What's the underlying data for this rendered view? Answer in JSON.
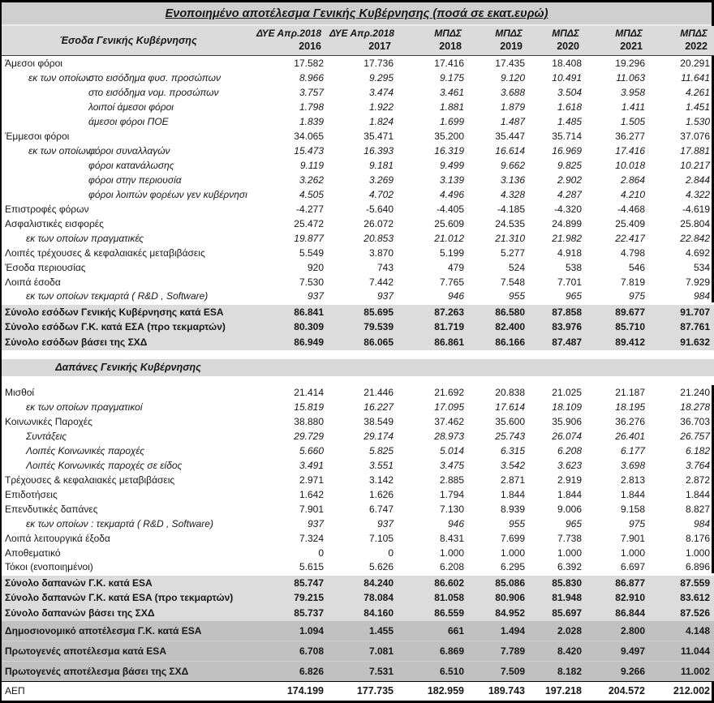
{
  "title": "Ενοποιημένο αποτέλεσμα Γενικής Κυβέρνησης (ποσά σε εκατ.ευρώ)",
  "colors": {
    "title_bg": "#cfcfcf",
    "header_bg": "#dbdbdb",
    "total_bg": "#dcdcdc",
    "result_bg": "#c1c1c1",
    "section_bg": "#d9d9d9"
  },
  "table": {
    "row_label_header": "Έσοδα Γενικής Κυβέρνησης",
    "column_headers": [
      {
        "group": "ΔΥΕ Απρ.2018",
        "year": "2016"
      },
      {
        "group": "ΔΥΕ Απρ.2018",
        "year": "2017"
      },
      {
        "group": "ΜΠΔΣ",
        "year": "2018"
      },
      {
        "group": "ΜΠΔΣ",
        "year": "2019"
      },
      {
        "group": "ΜΠΔΣ",
        "year": "2020"
      },
      {
        "group": "ΜΠΔΣ",
        "year": "2021"
      },
      {
        "group": "ΜΠΔΣ",
        "year": "2022"
      }
    ],
    "rows": [
      {
        "type": "plain",
        "label": "Άμεσοι φόροι",
        "values": [
          "17.582",
          "17.736",
          "17.416",
          "17.435",
          "18.408",
          "19.296",
          "20.291"
        ]
      },
      {
        "type": "deep",
        "prefix": "εκ των οποίων:",
        "label": "στο εισόδημα φυσ. προσώπων",
        "values": [
          "8.966",
          "9.295",
          "9.175",
          "9.120",
          "10.491",
          "11.063",
          "11.641"
        ]
      },
      {
        "type": "deep",
        "label": "στο εισόδημα νομ. προσώπων",
        "values": [
          "3.757",
          "3.474",
          "3.461",
          "3.688",
          "3.504",
          "3.958",
          "4.261"
        ]
      },
      {
        "type": "deep",
        "label": "λοιποί άμεσοι φόροι",
        "values": [
          "1.798",
          "1.922",
          "1.881",
          "1.879",
          "1.618",
          "1.411",
          "1.451"
        ]
      },
      {
        "type": "deep",
        "label": "άμεσοι φόροι ΠΟΕ",
        "values": [
          "1.839",
          "1.824",
          "1.699",
          "1.487",
          "1.485",
          "1.505",
          "1.530"
        ]
      },
      {
        "type": "plain",
        "label": "Έμμεσοι φόροι",
        "values": [
          "34.065",
          "35.471",
          "35.200",
          "35.447",
          "35.714",
          "36.277",
          "37.076"
        ]
      },
      {
        "type": "deep",
        "prefix": "εκ των οποίων :",
        "label": "φόροι συναλλαγών",
        "values": [
          "15.473",
          "16.393",
          "16.319",
          "16.614",
          "16.969",
          "17.416",
          "17.881"
        ]
      },
      {
        "type": "deep",
        "label": "φόροι κατανάλωσης",
        "values": [
          "9.119",
          "9.181",
          "9.499",
          "9.662",
          "9.825",
          "10.018",
          "10.217"
        ]
      },
      {
        "type": "deep",
        "label": "φόροι στην περιουσία",
        "values": [
          "3.262",
          "3.269",
          "3.139",
          "3.136",
          "2.902",
          "2.864",
          "2.844"
        ]
      },
      {
        "type": "deep",
        "label": "φόροι λοιπών φορέων γεν κυβέρνησι",
        "values": [
          "4.505",
          "4.702",
          "4.496",
          "4.328",
          "4.287",
          "4.210",
          "4.322"
        ]
      },
      {
        "type": "plain",
        "label": "Επιστροφές φόρων",
        "values": [
          "-4.277",
          "-5.640",
          "-4.405",
          "-4.185",
          "-4.320",
          "-4.468",
          "-4.619"
        ]
      },
      {
        "type": "plain",
        "label": "Ασφαλιστικές εισφορές",
        "values": [
          "25.472",
          "26.072",
          "25.609",
          "24.535",
          "24.899",
          "25.409",
          "25.804"
        ]
      },
      {
        "type": "sub",
        "label": "εκ των οποίων πραγματικές",
        "values": [
          "19.877",
          "20.853",
          "21.012",
          "21.310",
          "21.982",
          "22.417",
          "22.842"
        ]
      },
      {
        "type": "plain",
        "label": "Λοιπές τρέχουσες & κεφαλαιακές μεταβιβάσεις",
        "values": [
          "5.549",
          "3.870",
          "5.199",
          "5.277",
          "4.918",
          "4.798",
          "4.692"
        ]
      },
      {
        "type": "plain",
        "label": "Έσοδα περιουσίας",
        "values": [
          "920",
          "743",
          "479",
          "524",
          "538",
          "546",
          "534"
        ]
      },
      {
        "type": "plain",
        "label": "Λοιπά έσοδα",
        "values": [
          "7.530",
          "7.442",
          "7.765",
          "7.548",
          "7.701",
          "7.819",
          "7.929"
        ]
      },
      {
        "type": "sub",
        "label": "εκ των οποίων τεκμαρτά ( R&D , Software)",
        "values": [
          "937",
          "937",
          "946",
          "955",
          "965",
          "975",
          "984"
        ]
      },
      {
        "type": "total",
        "label": "Σύνολο εσόδων Γενικής Κυβέρνησης κατά ESA",
        "values": [
          "86.841",
          "85.695",
          "87.263",
          "86.580",
          "87.858",
          "89.677",
          "91.707"
        ]
      },
      {
        "type": "total",
        "label": "Σύνολο εσόδων Γ.Κ. κατά ΕΣΑ (προ τεκμαρτών)",
        "values": [
          "80.309",
          "79.539",
          "81.719",
          "82.400",
          "83.976",
          "85.710",
          "87.761"
        ]
      },
      {
        "type": "total",
        "label": "Σύνολο εσόδων βάσει της ΣΧΔ",
        "values": [
          "86.949",
          "86.065",
          "86.861",
          "86.166",
          "87.487",
          "89.412",
          "91.632"
        ]
      },
      {
        "type": "spacer"
      },
      {
        "type": "section",
        "label": "Δαπάνες Γενικής Κυβέρνησης"
      },
      {
        "type": "spacer"
      },
      {
        "type": "plain",
        "label": "Μισθοί",
        "values": [
          "21.414",
          "21.446",
          "21.692",
          "20.838",
          "21.025",
          "21.187",
          "21.240"
        ]
      },
      {
        "type": "sub",
        "label": "εκ των οποίων πραγματικοί",
        "values": [
          "15.819",
          "16.227",
          "17.095",
          "17.614",
          "18.109",
          "18.195",
          "18.278"
        ]
      },
      {
        "type": "plain",
        "label": "Κοινωνικές Παροχές",
        "values": [
          "38.880",
          "38.549",
          "37.462",
          "35.600",
          "35.906",
          "36.276",
          "36.703"
        ]
      },
      {
        "type": "sub",
        "label": "Συντάξεις",
        "values": [
          "29.729",
          "29.174",
          "28.973",
          "25.743",
          "26.074",
          "26.401",
          "26.757"
        ]
      },
      {
        "type": "sub",
        "label": "Λοιπές Κοινωνικές παροχές",
        "values": [
          "5.660",
          "5.825",
          "5.014",
          "6.315",
          "6.208",
          "6.177",
          "6.182"
        ]
      },
      {
        "type": "sub",
        "label": "Λοιπές Κοινωνικές παροχές σε είδος",
        "values": [
          "3.491",
          "3.551",
          "3.475",
          "3.542",
          "3.623",
          "3.698",
          "3.764"
        ]
      },
      {
        "type": "plain",
        "label": "Τρέχουσες & κεφαλαιακές μεταβιβάσεις",
        "values": [
          "2.971",
          "3.142",
          "2.885",
          "2.871",
          "2.919",
          "2.813",
          "2.872"
        ]
      },
      {
        "type": "plain",
        "label": "Επιδοτήσεις",
        "values": [
          "1.642",
          "1.626",
          "1.794",
          "1.844",
          "1.844",
          "1.844",
          "1.844"
        ]
      },
      {
        "type": "plain",
        "label": "Επενδυτικές δαπάνες",
        "values": [
          "7.901",
          "6.747",
          "7.130",
          "8.939",
          "9.006",
          "9.158",
          "8.827"
        ]
      },
      {
        "type": "sub",
        "label": "εκ των οποίων : τεκμαρτά ( R&D , Software)",
        "values": [
          "937",
          "937",
          "946",
          "955",
          "965",
          "975",
          "984"
        ]
      },
      {
        "type": "plain",
        "label": "Λοιπά λειτουργικά έξοδα",
        "values": [
          "7.324",
          "7.105",
          "8.431",
          "7.699",
          "7.738",
          "7.901",
          "8.176"
        ]
      },
      {
        "type": "plain",
        "label": "Αποθεματικό",
        "values": [
          "0",
          "0",
          "1.000",
          "1.000",
          "1.000",
          "1.000",
          "1.000"
        ]
      },
      {
        "type": "plain",
        "label": "Τόκοι (ενοποιημένοι)",
        "values": [
          "5.615",
          "5.626",
          "6.208",
          "6.295",
          "6.392",
          "6.697",
          "6.896"
        ]
      },
      {
        "type": "total",
        "label": "Σύνολο δαπανών Γ.Κ. κατά ESA",
        "values": [
          "85.747",
          "84.240",
          "86.602",
          "85.086",
          "85.830",
          "86.877",
          "87.559"
        ]
      },
      {
        "type": "total",
        "label": "Σύνολο δαπανών Γ.Κ. κατά ESA (προ τεκμαρτών)",
        "values": [
          "79.215",
          "78.084",
          "81.058",
          "80.906",
          "81.948",
          "82.910",
          "83.612"
        ]
      },
      {
        "type": "total",
        "label": "Σύνολο δαπανών βάσει της ΣΧΔ",
        "values": [
          "85.737",
          "84.160",
          "86.559",
          "84.952",
          "85.697",
          "86.844",
          "87.526"
        ]
      },
      {
        "type": "result",
        "label": "Δημοσιονομικό αποτέλεσμα Γ.Κ. κατά ESA",
        "values": [
          "1.094",
          "1.455",
          "661",
          "1.494",
          "2.028",
          "2.800",
          "4.148"
        ]
      },
      {
        "type": "result",
        "label": "Πρωτογενές αποτέλεσμα κατά ESA",
        "values": [
          "6.708",
          "7.081",
          "6.869",
          "7.789",
          "8.420",
          "9.497",
          "11.044"
        ]
      },
      {
        "type": "result",
        "label": "Πρωτογενές αποτέλεσμα βάσει της ΣΧΔ",
        "values": [
          "6.826",
          "7.531",
          "6.510",
          "7.509",
          "8.182",
          "9.266",
          "11.002"
        ]
      },
      {
        "type": "gdp",
        "label": "ΑΕΠ",
        "values": [
          "174.199",
          "177.735",
          "182.959",
          "189.743",
          "197.218",
          "204.572",
          "212.002"
        ]
      }
    ]
  }
}
